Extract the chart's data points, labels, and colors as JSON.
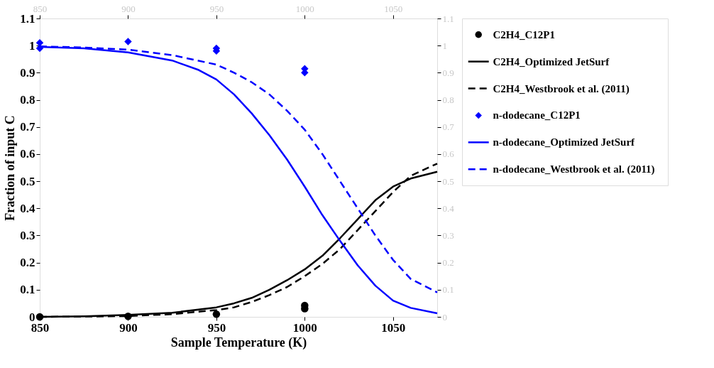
{
  "chart_data": {
    "type": "line",
    "xlabel": "Sample Temperature (K)",
    "ylabel": "Fraction of input C",
    "xlim": [
      850,
      1075
    ],
    "xticks": [
      850,
      900,
      950,
      1000,
      1050
    ],
    "x2lim": [
      850,
      1075
    ],
    "x2ticks": [
      850,
      900,
      950,
      1000,
      1050
    ],
    "ylim": [
      0,
      1.1
    ],
    "yticks": [
      0,
      0.1,
      0.2,
      0.3,
      0.4,
      0.5,
      0.6,
      0.7,
      0.8,
      0.9,
      1,
      1.1
    ],
    "y2lim": [
      0,
      1.1
    ],
    "y2ticks": [
      0,
      0.1,
      0.2,
      0.3,
      0.4,
      0.5,
      0.6,
      0.7,
      0.8,
      0.9,
      1,
      1.1
    ],
    "grid": false,
    "legend": "right",
    "series": [
      {
        "name": "C2H4_C12P1",
        "type": "scatter",
        "marker": "circle",
        "color": "#000000",
        "x": [
          850,
          900,
          950,
          1000,
          1000
        ],
        "values": [
          0,
          0.002,
          0.01,
          0.03,
          0.042
        ]
      },
      {
        "name": "C2H4_Optimized JetSurf",
        "line_style": "solid",
        "color": "#000000",
        "x": [
          850,
          875,
          900,
          925,
          950,
          960,
          970,
          980,
          990,
          1000,
          1010,
          1020,
          1030,
          1040,
          1050,
          1060,
          1075
        ],
        "values": [
          0,
          0.002,
          0.007,
          0.015,
          0.035,
          0.05,
          0.07,
          0.1,
          0.135,
          0.175,
          0.225,
          0.29,
          0.36,
          0.43,
          0.48,
          0.51,
          0.535
        ]
      },
      {
        "name": "C2H4_Westbrook et al. (2011)",
        "line_style": "dashed",
        "color": "#000000",
        "x": [
          850,
          875,
          900,
          925,
          950,
          960,
          970,
          980,
          990,
          1000,
          1010,
          1020,
          1030,
          1040,
          1050,
          1060,
          1075
        ],
        "values": [
          0,
          0.001,
          0.003,
          0.01,
          0.025,
          0.035,
          0.055,
          0.08,
          0.11,
          0.15,
          0.195,
          0.25,
          0.32,
          0.39,
          0.46,
          0.52,
          0.565
        ]
      },
      {
        "name": "n-dodecane_C12P1",
        "type": "scatter",
        "marker": "diamond",
        "color": "#0000ff",
        "x": [
          850,
          850,
          900,
          950,
          950,
          1000,
          1000
        ],
        "values": [
          1.01,
          0.99,
          1.015,
          0.99,
          0.98,
          0.915,
          0.9
        ]
      },
      {
        "name": "n-dodecane_Optimized JetSurf",
        "line_style": "solid",
        "color": "#0000ff",
        "x": [
          850,
          875,
          900,
          925,
          940,
          950,
          960,
          970,
          980,
          990,
          1000,
          1010,
          1020,
          1030,
          1040,
          1050,
          1060,
          1075
        ],
        "values": [
          0.995,
          0.99,
          0.975,
          0.945,
          0.91,
          0.875,
          0.82,
          0.75,
          0.67,
          0.58,
          0.48,
          0.375,
          0.28,
          0.19,
          0.115,
          0.06,
          0.033,
          0.013
        ]
      },
      {
        "name": "n-dodecane_Westbrook et al. (2011)",
        "line_style": "dashed",
        "color": "#0000ff",
        "x": [
          850,
          875,
          900,
          925,
          950,
          960,
          970,
          980,
          990,
          1000,
          1010,
          1020,
          1030,
          1040,
          1050,
          1060,
          1075
        ],
        "values": [
          0.997,
          0.993,
          0.985,
          0.965,
          0.93,
          0.9,
          0.865,
          0.82,
          0.76,
          0.69,
          0.6,
          0.5,
          0.4,
          0.3,
          0.21,
          0.14,
          0.09
        ]
      }
    ]
  }
}
